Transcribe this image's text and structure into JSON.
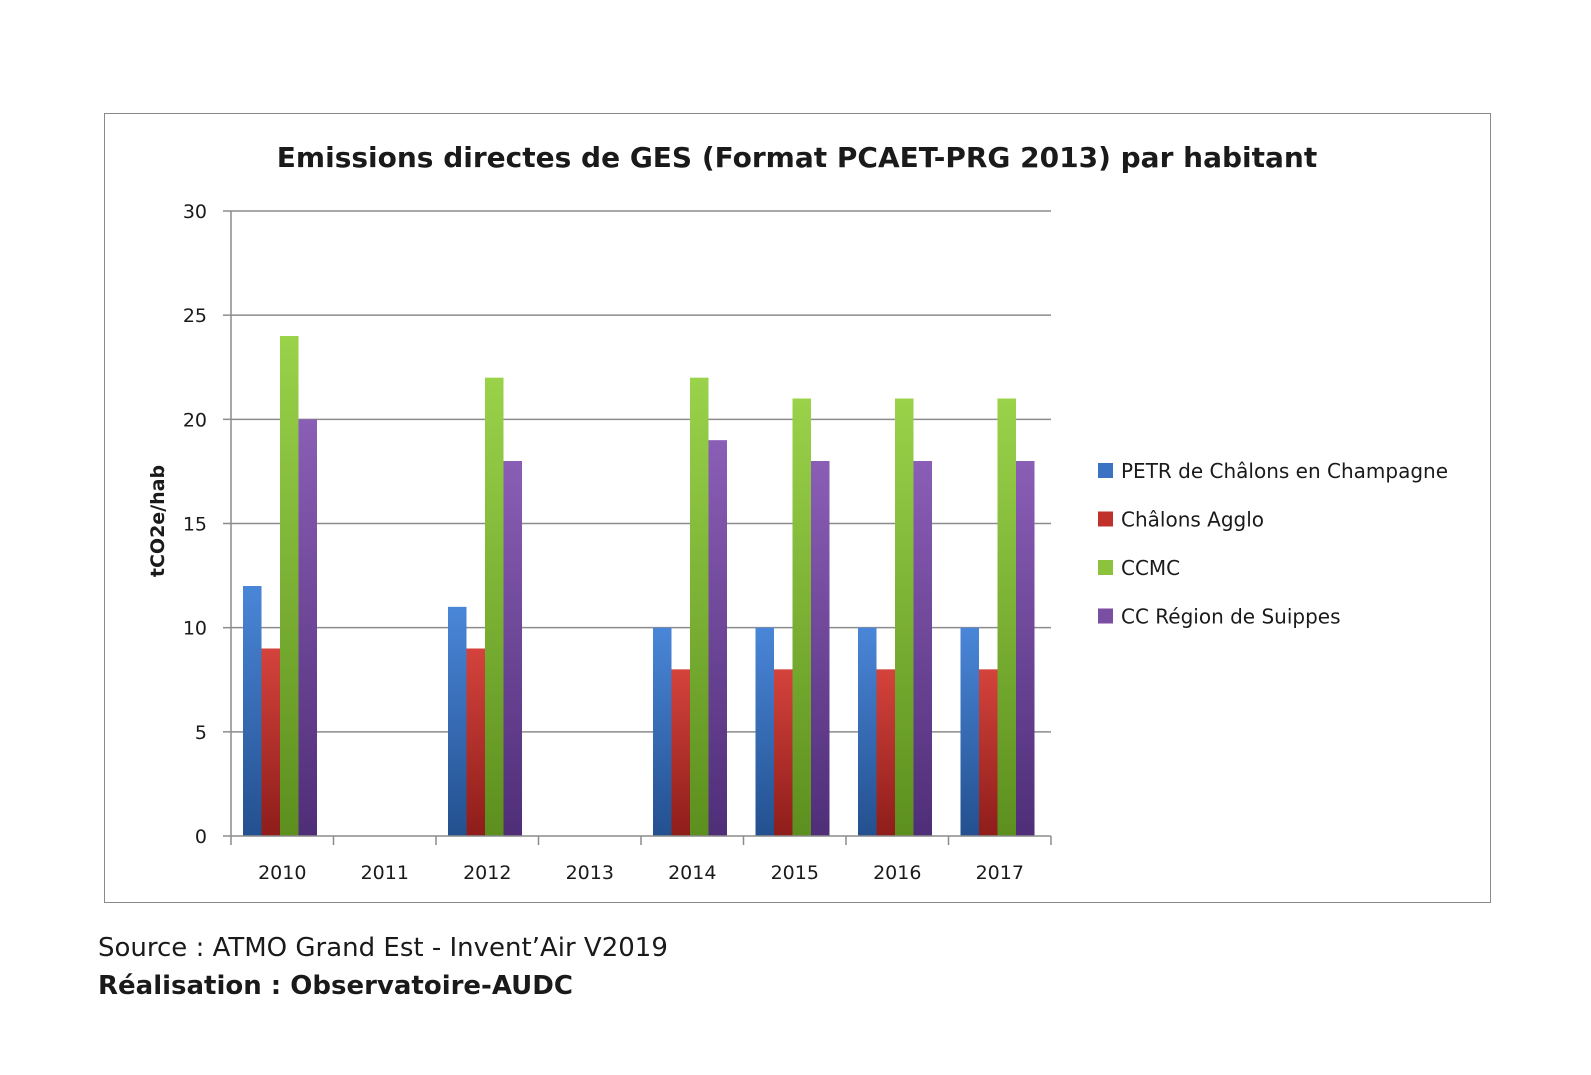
{
  "chart_data": {
    "type": "bar",
    "title": "Emissions directes de GES (Format PCAET-PRG 2013) par habitant",
    "xlabel": "",
    "ylabel": "tCO2e/hab",
    "ylim": [
      0,
      30
    ],
    "yticks": [
      "0",
      "5",
      "10",
      "15",
      "20",
      "25",
      "30"
    ],
    "grid": true,
    "legend_position": "right",
    "categories": [
      "2010",
      "2011",
      "2012",
      "2013",
      "2014",
      "2015",
      "2016",
      "2017"
    ],
    "series": [
      {
        "name": "PETR de Châlons en Champagne",
        "color": "#3a72c4",
        "values": [
          12,
          null,
          11,
          null,
          10,
          10,
          10,
          10
        ]
      },
      {
        "name": "Châlons Agglo",
        "color": "#c0312c",
        "values": [
          9,
          null,
          9,
          null,
          8,
          8,
          8,
          8
        ]
      },
      {
        "name": "CCMC",
        "color": "#8cc23c",
        "values": [
          24,
          null,
          22,
          null,
          22,
          21,
          21,
          21
        ]
      },
      {
        "name": "CC Région de Suippes",
        "color": "#7a4ea3",
        "values": [
          20,
          null,
          18,
          null,
          19,
          18,
          18,
          18
        ]
      }
    ]
  },
  "footer": {
    "source": "Source :  ATMO Grand Est - Invent’Air V2019",
    "credit": "Réalisation : Observatoire-AUDC"
  }
}
